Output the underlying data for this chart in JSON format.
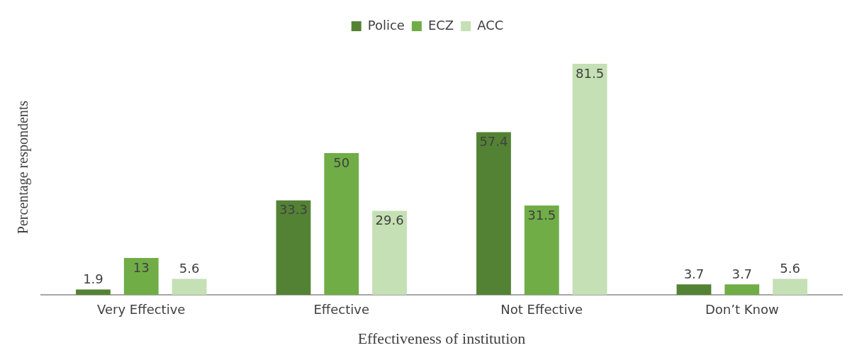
{
  "chart_data": {
    "type": "bar",
    "xlabel": "Effectiveness of institution",
    "ylabel": "Percentage respondents",
    "categories": [
      "Very Effective",
      "Effective",
      "Not Effective",
      "Don’t Know"
    ],
    "series": [
      {
        "name": "Police",
        "color": "#548235",
        "values": [
          1.9,
          33.3,
          57.4,
          3.7
        ]
      },
      {
        "name": "ECZ",
        "color": "#70ad47",
        "values": [
          13,
          50,
          31.5,
          3.7
        ]
      },
      {
        "name": "ACC",
        "color": "#c5e0b4",
        "values": [
          5.6,
          29.6,
          81.5,
          5.6
        ]
      }
    ],
    "data_labels": true,
    "grid": false,
    "legend": "top"
  }
}
